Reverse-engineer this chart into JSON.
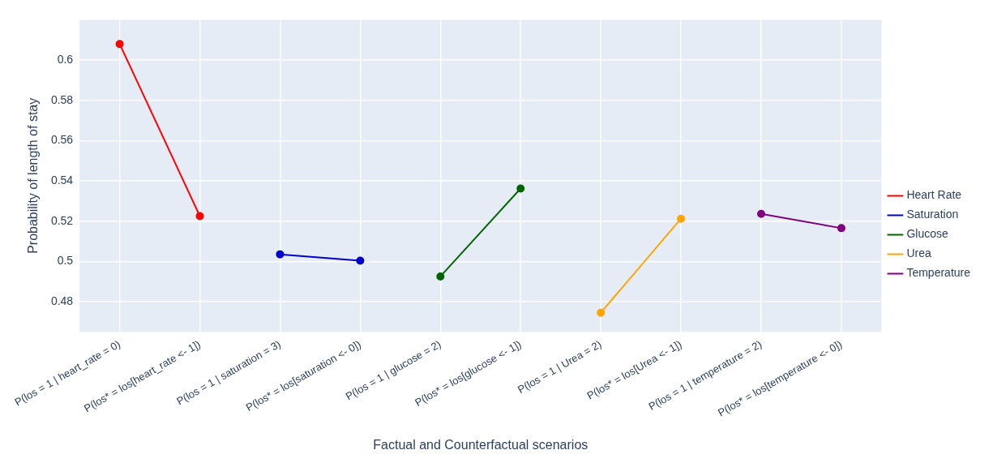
{
  "chart_data": {
    "type": "line",
    "xlabel": "Factual and Counterfactual scenarios",
    "ylabel": "Probability of length of stay",
    "categories": [
      "P(los = 1 | heart_rate = 0)",
      "P(los* = los[heart_rate <- 1])",
      "P(los = 1 | saturation = 3)",
      "P(los* = los[saturation <- 0])",
      "P(los = 1 | glucose = 2)",
      "P(los* = los[glucose <- 1])",
      "P(los = 1 | Urea = 2)",
      "P(los* = los[Urea <- 1])",
      "P(los = 1 | temperature = 2)",
      "P(los* = los[temperature <- 0])"
    ],
    "series": [
      {
        "name": "Heart Rate",
        "color": "#ff0000",
        "values": [
          0.608,
          0.5225,
          null,
          null,
          null,
          null,
          null,
          null,
          null,
          null
        ]
      },
      {
        "name": "Saturation",
        "color": "#0000cd",
        "values": [
          null,
          null,
          0.5035,
          0.5003,
          null,
          null,
          null,
          null,
          null,
          null
        ]
      },
      {
        "name": "Glucose",
        "color": "#006400",
        "values": [
          null,
          null,
          null,
          null,
          0.4925,
          0.5362,
          null,
          null,
          null,
          null
        ]
      },
      {
        "name": "Urea",
        "color": "#ffa500",
        "values": [
          null,
          null,
          null,
          null,
          null,
          null,
          0.4745,
          0.5212,
          null,
          null
        ]
      },
      {
        "name": "Temperature",
        "color": "#800080",
        "values": [
          null,
          null,
          null,
          null,
          null,
          null,
          null,
          null,
          0.5236,
          0.5165
        ]
      }
    ],
    "ylim": [
      0.465,
      0.62
    ],
    "yticks": [
      0.48,
      0.5,
      0.52,
      0.54,
      0.56,
      0.58,
      0.6
    ],
    "grid": true,
    "legend": "right",
    "marker": "circle",
    "line_style": "solid"
  }
}
